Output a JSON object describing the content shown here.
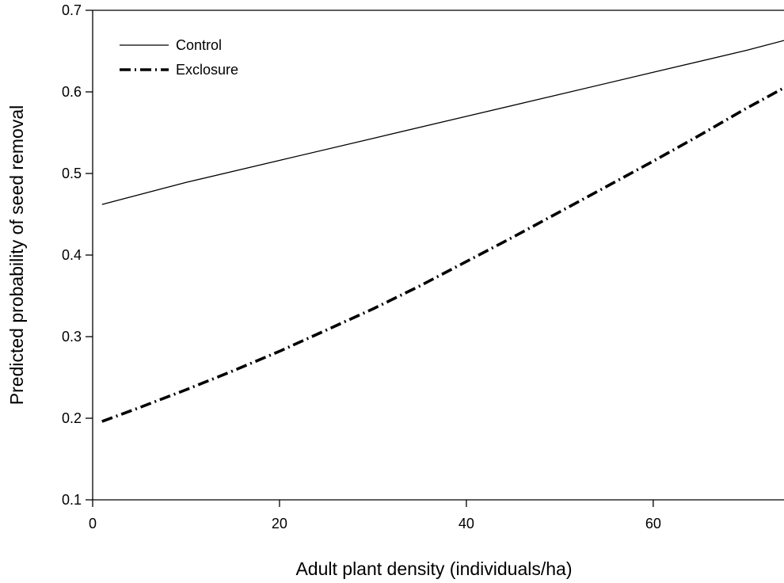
{
  "chart_data": {
    "type": "line",
    "xlabel": "Adult plant density (individuals/ha)",
    "ylabel": "Predicted probability of seed removal",
    "xlim": [
      0,
      74
    ],
    "ylim": [
      0.1,
      0.7
    ],
    "xticks": [
      0,
      20,
      40,
      60
    ],
    "xtick_labels": [
      "0",
      "20",
      "40",
      "60"
    ],
    "yticks": [
      0.1,
      0.2,
      0.3,
      0.4,
      0.5,
      0.6,
      0.7
    ],
    "ytick_labels": [
      "0.1",
      "0.2",
      "0.3",
      "0.4",
      "0.5",
      "0.6",
      "0.7"
    ],
    "grid": false,
    "legend_position": "top-left",
    "series": [
      {
        "name": "Control",
        "line_style": "solid",
        "color": "#000000",
        "x": [
          1,
          10,
          20,
          30,
          40,
          50,
          60,
          70,
          74
        ],
        "y": [
          0.462,
          0.489,
          0.516,
          0.543,
          0.57,
          0.597,
          0.624,
          0.651,
          0.663
        ]
      },
      {
        "name": "Exclosure",
        "line_style": "dash-dot",
        "color": "#000000",
        "x": [
          1,
          5,
          10,
          15,
          20,
          25,
          30,
          35,
          40,
          45,
          50,
          55,
          60,
          65,
          70,
          74
        ],
        "y": [
          0.196,
          0.213,
          0.235,
          0.258,
          0.282,
          0.308,
          0.334,
          0.362,
          0.392,
          0.422,
          0.453,
          0.484,
          0.515,
          0.547,
          0.58,
          0.605
        ]
      }
    ]
  }
}
